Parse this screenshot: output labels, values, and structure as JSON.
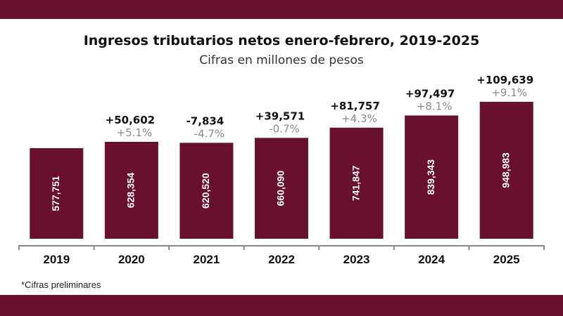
{
  "colors": {
    "bar": "#69102f",
    "band": "#69102f",
    "pct": "#8a8a8a"
  },
  "chart_data": {
    "type": "bar",
    "title": "Ingresos tributarios netos enero-febrero, 2019-2025",
    "subtitle": "Cifras en millones de pesos",
    "categories": [
      "2019",
      "2020",
      "2021",
      "2022",
      "2023",
      "2024",
      "2025"
    ],
    "values": [
      577751,
      628354,
      620520,
      660090,
      741847,
      839343,
      948983
    ],
    "value_labels": [
      "577,751",
      "628,354",
      "620,520",
      "660,090",
      "741,847",
      "839,343",
      "948,983"
    ],
    "change_labels": [
      "",
      "+50,602",
      "-7,834",
      "+39,571",
      "+81,757",
      "+97,497",
      "+109,639"
    ],
    "pct_labels": [
      "",
      "+5.1%",
      "-4.7%",
      "-0.7%",
      "+4.3%",
      "+8.1%",
      "+9.1%"
    ],
    "footnote": "*Cifras preliminares",
    "grid": false,
    "legend": "none"
  }
}
